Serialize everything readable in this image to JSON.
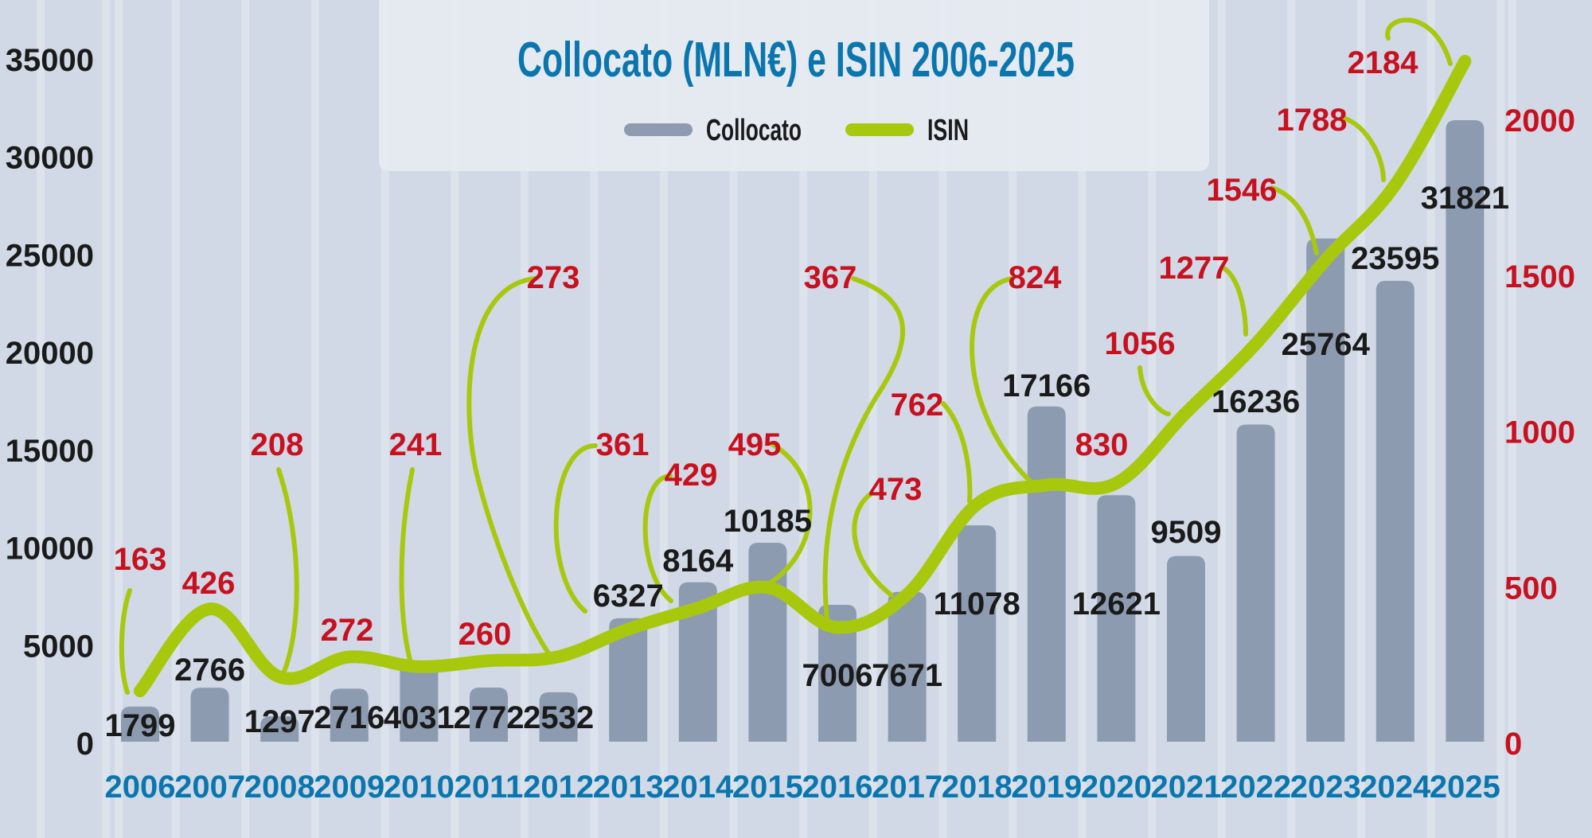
{
  "chart_data": {
    "type": "bar+line",
    "title": "Collocato (MLN€) e ISIN 2006-2025",
    "legend": {
      "position": "top-center",
      "entries": [
        "Collocato",
        "ISIN"
      ]
    },
    "categories": [
      "2006",
      "2007",
      "2008",
      "2009",
      "2010",
      "2011",
      "2012",
      "2013",
      "2014",
      "2015",
      "2016",
      "2017",
      "2018",
      "2019",
      "2020",
      "2021",
      "2022",
      "2023",
      "2024",
      "2025"
    ],
    "series": [
      {
        "name": "Collocato",
        "type": "bar",
        "axis": "left",
        "values": [
          1799,
          2766,
          1297,
          2716,
          4031,
          2772,
          2532,
          6327,
          8164,
          10185,
          7006,
          7671,
          11078,
          17166,
          12621,
          9509,
          16236,
          25764,
          23595,
          31821
        ]
      },
      {
        "name": "ISIN",
        "type": "line",
        "axis": "right",
        "values": [
          163,
          426,
          208,
          272,
          241,
          260,
          273,
          361,
          429,
          495,
          367,
          473,
          762,
          824,
          830,
          1056,
          1277,
          1546,
          1788,
          2184
        ]
      }
    ],
    "y_left": {
      "ylim": [
        0,
        35000
      ],
      "ticks": [
        "0",
        "5000",
        "10000",
        "15000",
        "20000",
        "25000",
        "30000",
        "35000"
      ]
    },
    "y_right": {
      "ylim": [
        0,
        2000
      ],
      "ticks": [
        "0",
        "500",
        "1000",
        "1500",
        "2000"
      ]
    },
    "grid": false,
    "colors": {
      "bar": "#8d9bb1",
      "line": "#a8c80e",
      "isin_label": "#c8101f",
      "bar_label": "#1a1a1a",
      "year": "#0a76ad",
      "title": "#0a76ad",
      "background": "#d0d9e5",
      "stripe": "#dce3ec",
      "panel": "#e6ebf2"
    }
  }
}
